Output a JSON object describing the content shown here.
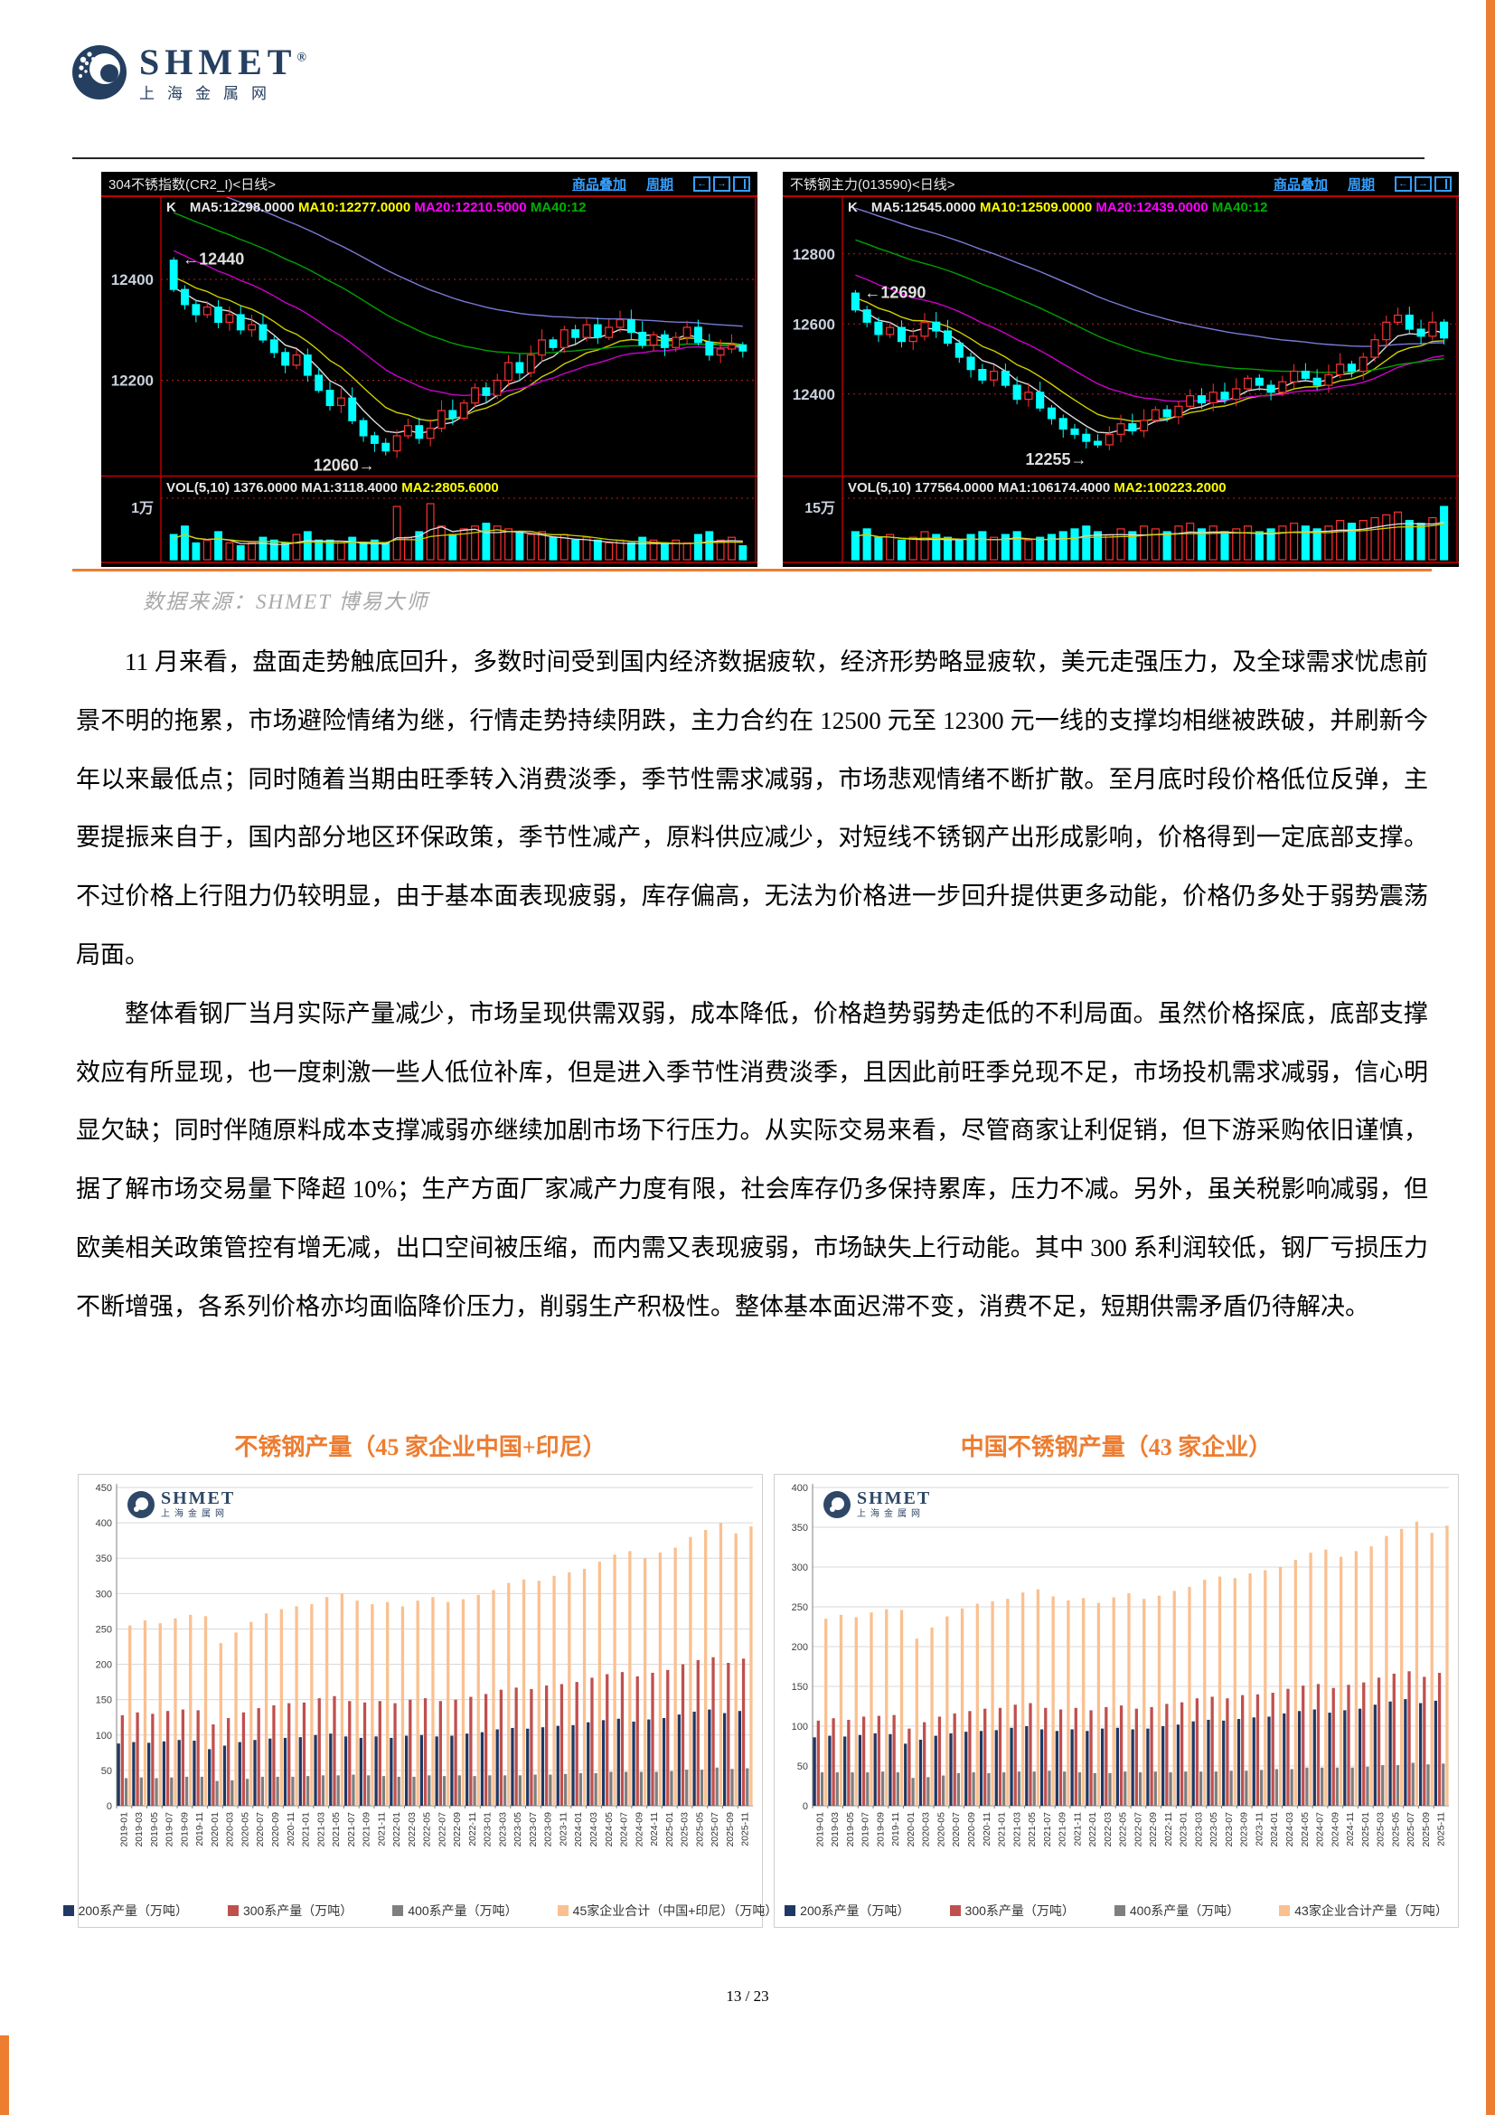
{
  "page_number": "13 / 23",
  "logo": {
    "brand": "SHMET",
    "reg": "®",
    "sub": "上海金属网"
  },
  "caption": "数据来源：SHMET  博易大师",
  "stock_toolbar": {
    "overlay": "商品叠加",
    "period": "周期"
  },
  "icons": {
    "back": "←",
    "forward": "→"
  },
  "paragraphs": [
    "11 月来看，盘面走势触底回升，多数时间受到国内经济数据疲软，经济形势略显疲软，美元走强压力，及全球需求忧虑前景不明的拖累，市场避险情绪为继，行情走势持续阴跌，主力合约在 12500 元至 12300 元一线的支撑均相继被跌破，并刷新今年以来最低点；同时随着当期由旺季转入消费淡季，季节性需求减弱，市场悲观情绪不断扩散。至月底时段价格低位反弹，主要提振来自于，国内部分地区环保政策，季节性减产，原料供应减少，对短线不锈钢产出形成影响，价格得到一定底部支撑。不过价格上行阻力仍较明显，由于基本面表现疲弱，库存偏高，无法为价格进一步回升提供更多动能，价格仍多处于弱势震荡局面。",
    "整体看钢厂当月实际产量减少，市场呈现供需双弱，成本降低，价格趋势弱势走低的不利局面。虽然价格探底，底部支撑效应有所显现，也一度刺激一些人低位补库，但是进入季节性消费淡季，且因此前旺季兑现不足，市场投机需求减弱，信心明显欠缺；同时伴随原料成本支撑减弱亦继续加剧市场下行压力。从实际交易来看，尽管商家让利促销，但下游采购依旧谨慎，据了解市场交易量下降超 10%；生产方面厂家减产力度有限，社会库存仍多保持累库，压力不减。另外，虽关税影响减弱，但欧美相关政策管控有增无减，出口空间被压缩，而内需又表现疲弱，市场缺失上行动能。其中 300 系利润较低，钢厂亏损压力不断增强，各系列价格亦均面临降价压力，削弱生产积极性。整体基本面迟滞不变，消费不足，短期供需矛盾仍待解决。"
  ],
  "chart_data": [
    {
      "id": "stock-left",
      "type": "candlestick",
      "title": "304不锈指数(CR2_I)<日线>",
      "ma_prefix": "K",
      "ma_items": [
        {
          "t": "MA5:12298.0000",
          "c": "#e8e8e8"
        },
        {
          "t": "MA10:12277.0000",
          "c": "#ffff00"
        },
        {
          "t": "MA20:12210.5000",
          "c": "#ff00ff"
        },
        {
          "t": "MA40:12",
          "c": "#00b000"
        }
      ],
      "vol_items": [
        {
          "t": "VOL(5,10) 1376.0000",
          "c": "#e8e8e8"
        },
        {
          "t": "MA1:3118.4000",
          "c": "#e8e8e8"
        },
        {
          "t": "MA2:2805.6000",
          "c": "#ffff00"
        }
      ],
      "vol_axis_label": "1万",
      "yticks": [
        12400,
        12200
      ],
      "vmin": 12020,
      "vmax": 12520,
      "open0": 12438,
      "annotations": [
        {
          "text": "←12440",
          "i": 0,
          "v": 12440,
          "side": "right"
        },
        {
          "text": "12060→",
          "i": 19,
          "v": 12060,
          "side": "left"
        }
      ],
      "ma_curves": [
        {
          "w": 5,
          "off": 5,
          "c": "#dddddd"
        },
        {
          "w": 10,
          "off": 30,
          "c": "#cfcf00"
        },
        {
          "w": 20,
          "off": 85,
          "c": "#cc00cc"
        },
        {
          "w": 40,
          "off": 160,
          "c": "#00a000"
        },
        {
          "w": 60,
          "off": 230,
          "c": "#7a7ad8"
        }
      ],
      "closes": [
        12380,
        12350,
        12330,
        12345,
        12315,
        12330,
        12300,
        12310,
        12280,
        12255,
        12230,
        12250,
        12210,
        12180,
        12150,
        12165,
        12120,
        12090,
        12075,
        12060,
        12090,
        12110,
        12085,
        12105,
        12140,
        12125,
        12155,
        12185,
        12170,
        12200,
        12235,
        12215,
        12250,
        12280,
        12265,
        12300,
        12285,
        12310,
        12285,
        12305,
        12320,
        12295,
        12270,
        12290,
        12265,
        12285,
        12305,
        12275,
        12250,
        12262,
        12270,
        12258
      ],
      "vols": [
        0.45,
        0.6,
        0.3,
        0.35,
        0.5,
        0.3,
        0.25,
        0.3,
        0.4,
        0.35,
        0.3,
        0.45,
        0.5,
        0.35,
        0.35,
        0.3,
        0.4,
        0.3,
        0.35,
        0.3,
        0.95,
        0.4,
        0.5,
        1.0,
        0.6,
        0.45,
        0.55,
        0.6,
        0.65,
        0.6,
        0.55,
        0.5,
        0.45,
        0.5,
        0.4,
        0.45,
        0.35,
        0.4,
        0.35,
        0.3,
        0.35,
        0.3,
        0.4,
        0.35,
        0.3,
        0.35,
        0.3,
        0.45,
        0.5,
        0.35,
        0.4,
        0.25
      ]
    },
    {
      "id": "stock-right",
      "type": "candlestick",
      "title": "不锈钢主力(013590)<日线>",
      "ma_prefix": "K",
      "ma_items": [
        {
          "t": "MA5:12545.0000",
          "c": "#e8e8e8"
        },
        {
          "t": "MA10:12509.0000",
          "c": "#ffff00"
        },
        {
          "t": "MA20:12439.0000",
          "c": "#ff00ff"
        },
        {
          "t": "MA40:12",
          "c": "#00b000"
        }
      ],
      "vol_items": [
        {
          "t": "VOL(5,10) 177564.0000",
          "c": "#e8e8e8"
        },
        {
          "t": "MA1:106174.4000",
          "c": "#e8e8e8"
        },
        {
          "t": "MA2:100223.2000",
          "c": "#ffff00"
        }
      ],
      "vol_axis_label": "15万",
      "yticks": [
        12800,
        12600,
        12400
      ],
      "vmin": 12180,
      "vmax": 12900,
      "open0": 12688,
      "annotations": [
        {
          "text": "←12690",
          "i": 0,
          "v": 12690,
          "side": "right"
        },
        {
          "text": "12255→",
          "i": 21,
          "v": 12255,
          "side": "left"
        }
      ],
      "ma_curves": [
        {
          "w": 5,
          "off": 7,
          "c": "#dddddd"
        },
        {
          "w": 10,
          "off": 42,
          "c": "#cfcf00"
        },
        {
          "w": 20,
          "off": 110,
          "c": "#cc00cc"
        },
        {
          "w": 40,
          "off": 210,
          "c": "#00a000"
        },
        {
          "w": 60,
          "off": 300,
          "c": "#7a7ad8"
        }
      ],
      "closes": [
        12640,
        12605,
        12570,
        12590,
        12550,
        12565,
        12605,
        12580,
        12545,
        12505,
        12470,
        12440,
        12465,
        12425,
        12385,
        12405,
        12360,
        12330,
        12300,
        12285,
        12265,
        12255,
        12285,
        12315,
        12295,
        12325,
        12355,
        12335,
        12365,
        12395,
        12375,
        12405,
        12385,
        12415,
        12445,
        12425,
        12405,
        12435,
        12465,
        12445,
        12425,
        12455,
        12485,
        12465,
        12505,
        12555,
        12605,
        12625,
        12585,
        12565,
        12605,
        12560
      ],
      "vols": [
        0.5,
        0.55,
        0.4,
        0.45,
        0.35,
        0.4,
        0.5,
        0.45,
        0.4,
        0.35,
        0.45,
        0.5,
        0.4,
        0.45,
        0.5,
        0.35,
        0.4,
        0.45,
        0.5,
        0.55,
        0.6,
        0.5,
        0.45,
        0.55,
        0.5,
        0.6,
        0.55,
        0.5,
        0.6,
        0.65,
        0.55,
        0.6,
        0.5,
        0.55,
        0.6,
        0.5,
        0.55,
        0.6,
        0.65,
        0.6,
        0.55,
        0.6,
        0.7,
        0.65,
        0.7,
        0.75,
        0.8,
        0.85,
        0.7,
        0.65,
        0.75,
        0.95
      ]
    },
    {
      "id": "prod-left",
      "type": "bar",
      "title": "不锈钢产量（45 家企业中国+印尼）",
      "ylim": [
        0,
        450
      ],
      "ystep": 50,
      "categories": [
        "2019-01",
        "2019-03",
        "2019-05",
        "2019-07",
        "2019-09",
        "2019-11",
        "2020-01",
        "2020-03",
        "2020-05",
        "2020-07",
        "2020-09",
        "2020-11",
        "2021-01",
        "2021-03",
        "2021-05",
        "2021-07",
        "2021-09",
        "2021-11",
        "2022-01",
        "2022-03",
        "2022-05",
        "2022-07",
        "2022-09",
        "2022-11",
        "2023-01",
        "2023-03",
        "2023-05",
        "2023-07",
        "2023-09",
        "2023-11",
        "2024-01",
        "2024-03",
        "2024-05",
        "2024-07",
        "2024-09",
        "2024-11",
        "2025-01",
        "2025-03",
        "2025-05",
        "2025-07",
        "2025-09",
        "2025-11"
      ],
      "series": [
        {
          "name": "200系产量（万吨）",
          "color": "#1F3864",
          "values": [
            88,
            90,
            89,
            91,
            93,
            92,
            80,
            85,
            90,
            93,
            95,
            96,
            97,
            100,
            102,
            98,
            96,
            98,
            96,
            99,
            100,
            98,
            99,
            102,
            104,
            108,
            110,
            109,
            111,
            113,
            114,
            118,
            121,
            123,
            119,
            122,
            124,
            129,
            133,
            136,
            131,
            134
          ]
        },
        {
          "name": "300系产量（万吨）",
          "color": "#C0504D",
          "values": [
            128,
            132,
            130,
            134,
            136,
            135,
            115,
            124,
            132,
            138,
            142,
            145,
            146,
            152,
            155,
            148,
            146,
            148,
            145,
            150,
            152,
            148,
            150,
            154,
            158,
            164,
            167,
            165,
            170,
            172,
            175,
            181,
            186,
            189,
            183,
            188,
            192,
            200,
            206,
            210,
            202,
            208
          ]
        },
        {
          "name": "400系产量（万吨）",
          "color": "#7F7F7F",
          "values": [
            39,
            40,
            39,
            40,
            41,
            41,
            35,
            36,
            38,
            41,
            41,
            41,
            42,
            43,
            43,
            44,
            43,
            42,
            41,
            41,
            43,
            42,
            43,
            42,
            43,
            43,
            43,
            44,
            44,
            45,
            46,
            46,
            48,
            48,
            48,
            48,
            49,
            51,
            51,
            54,
            52,
            53
          ]
        },
        {
          "name": "45家企业合计（中国+印尼）（万吨）",
          "color": "#FAC090",
          "values": [
            255,
            262,
            258,
            265,
            270,
            268,
            230,
            245,
            260,
            272,
            278,
            282,
            285,
            295,
            300,
            290,
            285,
            288,
            282,
            290,
            295,
            288,
            292,
            298,
            305,
            315,
            320,
            318,
            325,
            330,
            335,
            345,
            355,
            360,
            350,
            358,
            365,
            380,
            390,
            400,
            385,
            395
          ]
        }
      ]
    },
    {
      "id": "prod-right",
      "type": "bar",
      "title": "中国不锈钢产量（43 家企业）",
      "ylim": [
        0,
        400
      ],
      "ystep": 50,
      "categories": [
        "2019-01",
        "2019-03",
        "2019-05",
        "2019-07",
        "2019-09",
        "2019-11",
        "2020-01",
        "2020-03",
        "2020-05",
        "2020-07",
        "2020-09",
        "2020-11",
        "2021-01",
        "2021-03",
        "2021-05",
        "2021-07",
        "2021-09",
        "2021-11",
        "2022-01",
        "2022-03",
        "2022-05",
        "2022-07",
        "2022-09",
        "2022-11",
        "2023-01",
        "2023-03",
        "2023-05",
        "2023-07",
        "2023-09",
        "2023-11",
        "2024-01",
        "2024-03",
        "2024-05",
        "2024-07",
        "2024-09",
        "2024-11",
        "2025-01",
        "2025-03",
        "2025-05",
        "2025-07",
        "2025-09",
        "2025-11"
      ],
      "series": [
        {
          "name": "200系产量（万吨）",
          "color": "#1F3864",
          "values": [
            86,
            88,
            87,
            89,
            91,
            90,
            78,
            83,
            88,
            91,
            93,
            94,
            95,
            98,
            100,
            96,
            94,
            96,
            94,
            97,
            98,
            96,
            97,
            100,
            102,
            106,
            108,
            107,
            109,
            111,
            112,
            116,
            119,
            121,
            117,
            120,
            122,
            127,
            131,
            134,
            129,
            132
          ]
        },
        {
          "name": "300系产量（万吨）",
          "color": "#C0504D",
          "values": [
            107,
            110,
            108,
            112,
            113,
            114,
            97,
            105,
            112,
            116,
            119,
            122,
            123,
            127,
            129,
            123,
            121,
            123,
            120,
            124,
            126,
            122,
            124,
            128,
            130,
            135,
            137,
            135,
            139,
            140,
            142,
            147,
            151,
            153,
            148,
            152,
            155,
            161,
            166,
            169,
            162,
            167
          ]
        },
        {
          "name": "400系产量（万吨）",
          "color": "#7F7F7F",
          "values": [
            42,
            42,
            42,
            42,
            43,
            42,
            35,
            36,
            38,
            41,
            42,
            41,
            42,
            43,
            43,
            44,
            43,
            42,
            41,
            41,
            43,
            42,
            43,
            42,
            43,
            43,
            43,
            44,
            44,
            45,
            46,
            46,
            48,
            48,
            48,
            48,
            49,
            51,
            51,
            54,
            52,
            53
          ]
        },
        {
          "name": "43家企业合计产量（万吨）",
          "color": "#FAC090",
          "values": [
            235,
            240,
            237,
            243,
            247,
            246,
            210,
            224,
            238,
            248,
            254,
            257,
            260,
            268,
            272,
            263,
            258,
            261,
            255,
            262,
            267,
            260,
            264,
            270,
            275,
            284,
            288,
            286,
            292,
            296,
            300,
            309,
            318,
            322,
            313,
            320,
            326,
            339,
            348,
            357,
            343,
            352
          ]
        }
      ]
    }
  ]
}
